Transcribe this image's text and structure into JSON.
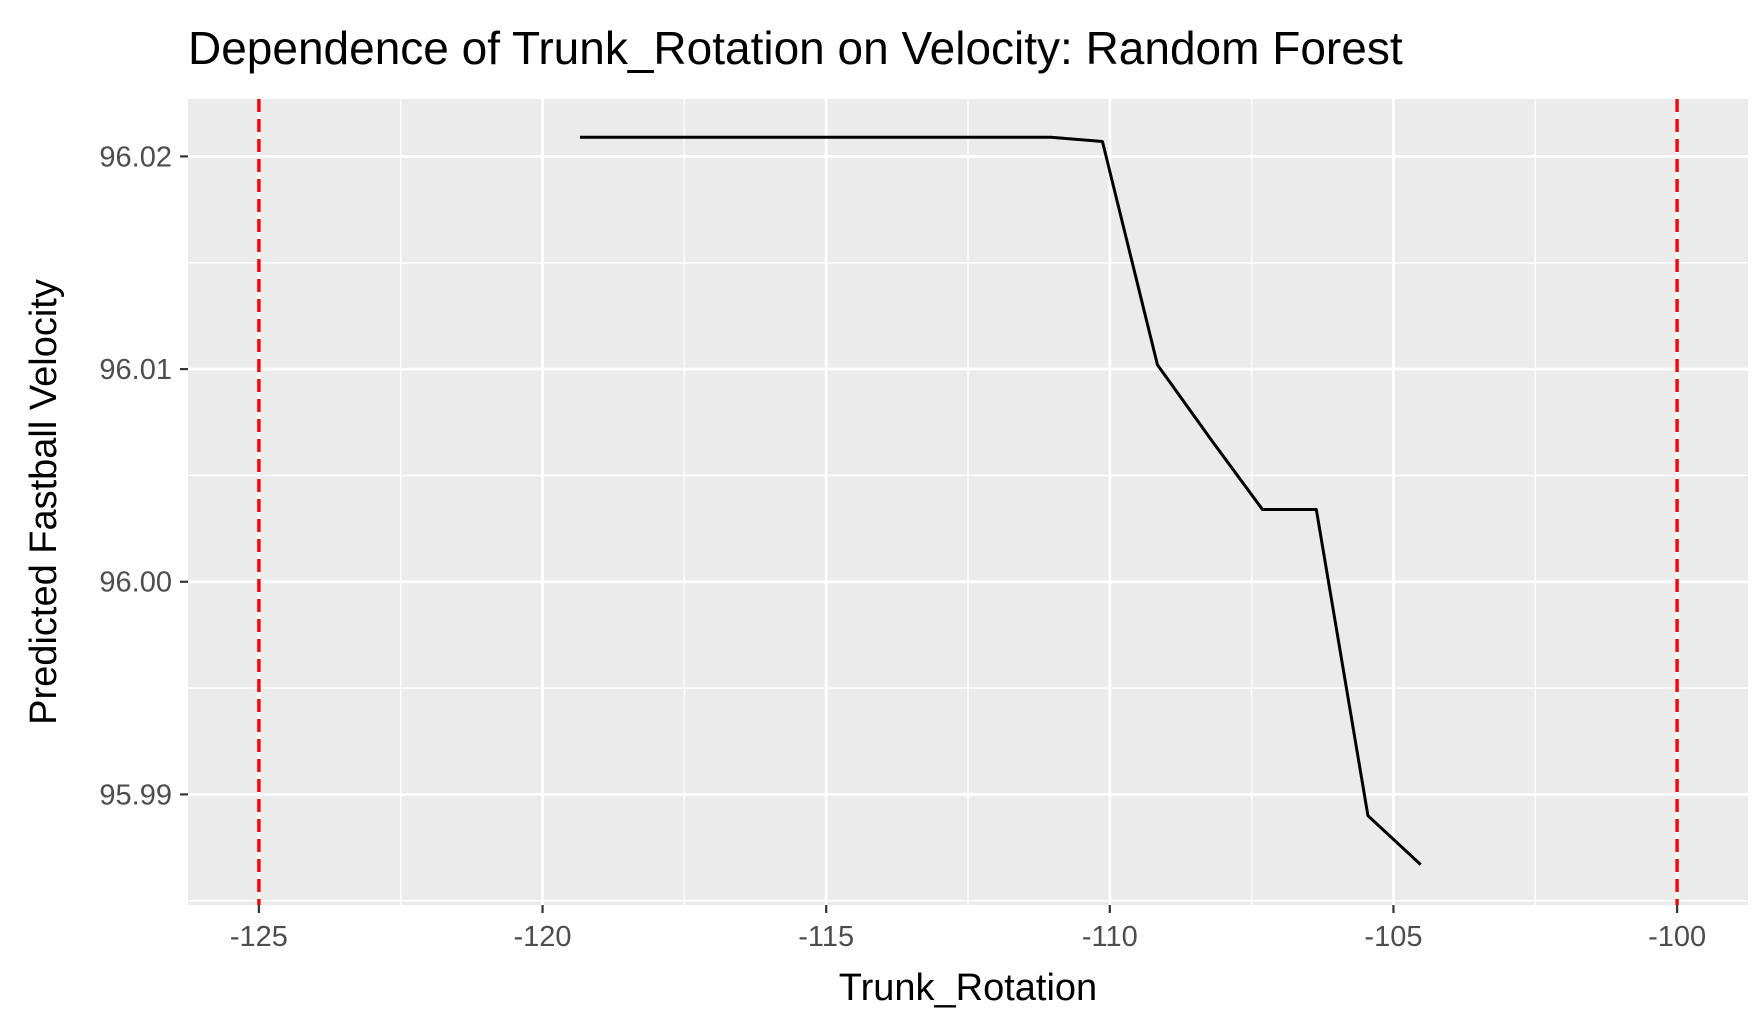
{
  "chart_data": {
    "type": "line",
    "title": "Dependence of Trunk_Rotation on Velocity: Random Forest",
    "xlabel": "Trunk_Rotation",
    "ylabel": "Predicted Fastball Velocity",
    "xlim": [
      -126.25,
      -98.75
    ],
    "ylim": [
      95.9848,
      96.0227
    ],
    "x_ticks": [
      -125,
      -120,
      -115,
      -110,
      -105,
      -100
    ],
    "x_tick_labels": [
      "-125",
      "-120",
      "-115",
      "-110",
      "-105",
      "-100"
    ],
    "y_ticks": [
      95.99,
      96.0,
      96.01,
      96.02
    ],
    "y_tick_labels": [
      "95.99",
      "96.00",
      "96.01",
      "96.02"
    ],
    "grid": true,
    "background": "#ebebeb",
    "series": [
      {
        "color": "#000000",
        "x": [
          -119.34,
          -111.04,
          -110.13,
          -109.16,
          -108.22,
          -107.31,
          -106.36,
          -105.45,
          -104.52
        ],
        "y": [
          96.0209,
          96.0209,
          96.0207,
          96.0102,
          96.0067,
          96.0034,
          96.0034,
          95.989,
          95.9867
        ]
      }
    ],
    "reference_lines": [
      {
        "axis": "x",
        "value": -125,
        "color": "#ff0000",
        "style": "dashed"
      },
      {
        "axis": "x",
        "value": -100,
        "color": "#ff0000",
        "style": "dashed"
      }
    ]
  }
}
